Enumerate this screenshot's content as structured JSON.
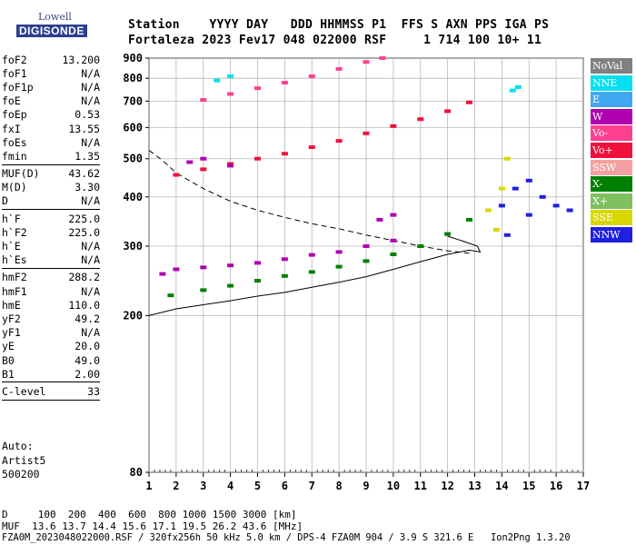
{
  "logo": {
    "top": "Lowell",
    "bottom": "DIGISONDE"
  },
  "header": {
    "line1": "Station    YYYY DAY   DDD HHMMSS P1  FFS S AXN PPS IGA PS",
    "line2": "Fortaleza 2023 Fev17 048 022000 RSF     1 714 100 10+ 11"
  },
  "params_groups": [
    [
      [
        "foF2",
        "13.200"
      ],
      [
        "foF1",
        "N/A"
      ],
      [
        "foF1p",
        "N/A"
      ],
      [
        "foE",
        "N/A"
      ],
      [
        "foEp",
        "0.53"
      ],
      [
        "fxI",
        "13.55"
      ],
      [
        "foEs",
        "N/A"
      ],
      [
        "fmin",
        "1.35"
      ]
    ],
    [
      [
        "MUF(D)",
        "43.62"
      ],
      [
        "M(D)",
        "3.30"
      ],
      [
        "D",
        "N/A"
      ]
    ],
    [
      [
        "h`F",
        "225.0"
      ],
      [
        "h`F2",
        "225.0"
      ],
      [
        "h`E",
        "N/A"
      ],
      [
        "h`Es",
        "N/A"
      ]
    ],
    [
      [
        "hmF2",
        "288.2"
      ],
      [
        "hmF1",
        "N/A"
      ],
      [
        "hmE",
        "110.0"
      ],
      [
        "yF2",
        "49.2"
      ],
      [
        "yF1",
        "N/A"
      ],
      [
        "yE",
        "20.0"
      ],
      [
        "B0",
        "49.0"
      ],
      [
        "B1",
        "2.00"
      ]
    ],
    [
      [
        "C-level",
        "33"
      ]
    ]
  ],
  "auto_lines": [
    "Auto:",
    "Artist5",
    "500200"
  ],
  "legend": [
    {
      "label": "NoVal",
      "color": "#808080"
    },
    {
      "label": "NNE",
      "color": "#00e0f0"
    },
    {
      "label": "E",
      "color": "#40a8f0"
    },
    {
      "label": "W",
      "color": "#b000b0"
    },
    {
      "label": "Vo-",
      "color": "#ff4090"
    },
    {
      "label": "Vo+",
      "color": "#f0103c"
    },
    {
      "label": "SSW",
      "color": "#f4a0a0"
    },
    {
      "label": "X-",
      "color": "#008000"
    },
    {
      "label": "X+",
      "color": "#80c060"
    },
    {
      "label": "SSE",
      "color": "#d8d800"
    },
    {
      "label": "NNW",
      "color": "#2020e0"
    }
  ],
  "bottom": {
    "d_line": "D     100  200  400  600  800 1000 1500 3000 [km]",
    "muf_line": "MUF  13.6 13.7 14.4 15.6 17.1 19.5 26.2 43.6 [MHz]",
    "file_line": "FZA0M_2023048022000.RSF / 320fx256h 50 kHz 5.0 km / DPS-4 FZA0M 904 / 3.9 S 321.6 E   Ion2Png 1.3.20"
  },
  "chart_data": {
    "type": "scatter",
    "x_ticks": [
      1,
      2,
      3,
      4,
      5,
      6,
      7,
      8,
      9,
      10,
      11,
      12,
      13,
      14,
      15,
      16,
      17
    ],
    "y_ticks": [
      80,
      200,
      300,
      400,
      500,
      600,
      700,
      800,
      900
    ],
    "xlim": [
      1,
      17
    ],
    "ylim": [
      80,
      900
    ],
    "y_scale": "log",
    "grid": true,
    "series": [
      {
        "name": "X-",
        "color": "#008000",
        "points": [
          [
            1.8,
            225
          ],
          [
            3,
            232
          ],
          [
            4,
            238
          ],
          [
            5,
            245
          ],
          [
            6,
            252
          ],
          [
            7,
            258
          ],
          [
            8,
            266
          ],
          [
            9,
            275
          ],
          [
            10,
            286
          ],
          [
            11,
            300
          ],
          [
            12,
            322
          ],
          [
            12.8,
            350
          ]
        ]
      },
      {
        "name": "Vo+",
        "color": "#f0103c",
        "points": [
          [
            2,
            455
          ],
          [
            3,
            470
          ],
          [
            4,
            485
          ],
          [
            5,
            500
          ],
          [
            6,
            515
          ],
          [
            7,
            535
          ],
          [
            8,
            555
          ],
          [
            9,
            580
          ],
          [
            10,
            605
          ],
          [
            11,
            630
          ],
          [
            12,
            660
          ],
          [
            12.8,
            695
          ]
        ]
      },
      {
        "name": "Vo-",
        "color": "#ff4090",
        "points": [
          [
            3,
            705
          ],
          [
            4,
            730
          ],
          [
            5,
            755
          ],
          [
            6,
            780
          ],
          [
            7,
            810
          ],
          [
            8,
            845
          ],
          [
            9,
            880
          ],
          [
            9.6,
            900
          ]
        ]
      },
      {
        "name": "W",
        "color": "#b000b0",
        "points": [
          [
            1.5,
            255
          ],
          [
            2,
            262
          ],
          [
            3,
            265
          ],
          [
            4,
            268
          ],
          [
            5,
            272
          ],
          [
            6,
            278
          ],
          [
            7,
            285
          ],
          [
            8,
            290
          ],
          [
            9,
            300
          ],
          [
            10,
            310
          ],
          [
            2.5,
            490
          ],
          [
            3,
            500
          ],
          [
            4,
            480
          ],
          [
            9.5,
            350
          ],
          [
            10,
            360
          ]
        ]
      },
      {
        "name": "NNW",
        "color": "#2020e0",
        "points": [
          [
            14,
            380
          ],
          [
            14.5,
            420
          ],
          [
            15,
            360
          ],
          [
            15.5,
            400
          ],
          [
            16,
            380
          ],
          [
            16.5,
            370
          ],
          [
            14.2,
            320
          ],
          [
            15,
            440
          ]
        ]
      },
      {
        "name": "SSE",
        "color": "#d8d800",
        "points": [
          [
            13.5,
            370
          ],
          [
            14,
            420
          ],
          [
            14.2,
            500
          ],
          [
            13.8,
            330
          ]
        ]
      },
      {
        "name": "NNE",
        "color": "#00e0f0",
        "points": [
          [
            14.4,
            745
          ],
          [
            14.6,
            760
          ],
          [
            3.5,
            790
          ],
          [
            4,
            810
          ]
        ]
      }
    ],
    "virtual_height_trace": {
      "color": "#000000",
      "points": [
        [
          1,
          200
        ],
        [
          2,
          208
        ],
        [
          3,
          213
        ],
        [
          4,
          218
        ],
        [
          5,
          224
        ],
        [
          6,
          229
        ],
        [
          7,
          236
        ],
        [
          8,
          243
        ],
        [
          9,
          251
        ],
        [
          10,
          262
        ],
        [
          11,
          274
        ],
        [
          12,
          286
        ],
        [
          12.8,
          293
        ],
        [
          13.2,
          290
        ],
        [
          13.1,
          300
        ],
        [
          12.5,
          310
        ],
        [
          12,
          318
        ]
      ]
    },
    "profile_trace": {
      "color": "#000000",
      "dashed": true,
      "points": [
        [
          1,
          525
        ],
        [
          1.5,
          495
        ],
        [
          2,
          460
        ],
        [
          3,
          420
        ],
        [
          4,
          390
        ],
        [
          5,
          370
        ],
        [
          6,
          355
        ],
        [
          7,
          342
        ],
        [
          8,
          332
        ],
        [
          9,
          320
        ],
        [
          10,
          310
        ],
        [
          11,
          300
        ],
        [
          12,
          292
        ],
        [
          12.8,
          288
        ]
      ]
    }
  }
}
